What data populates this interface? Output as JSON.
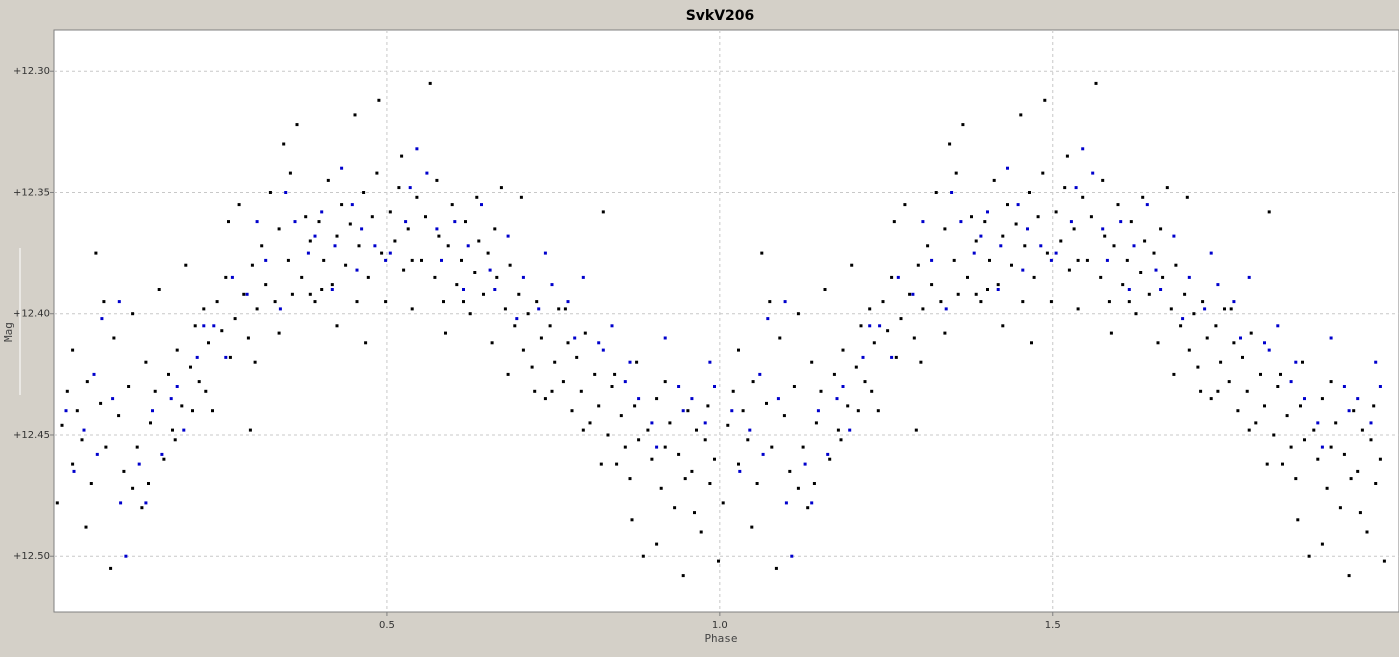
{
  "chart_data": {
    "type": "scatter",
    "title": "SvkV206",
    "xlabel": "Phase",
    "ylabel": "Mag",
    "xlim": [
      0.0,
      2.02
    ],
    "ylim": [
      12.523,
      12.283
    ],
    "y_axis_inverted": true,
    "x_ticks": [
      {
        "value": 0.5,
        "label": "0.5"
      },
      {
        "value": 1.0,
        "label": "1.0"
      },
      {
        "value": 1.5,
        "label": "1.5"
      }
    ],
    "y_ticks": [
      {
        "value": 12.3,
        "label": "+12.30"
      },
      {
        "value": 12.35,
        "label": "+12.35"
      },
      {
        "value": 12.4,
        "label": "+12.40"
      },
      {
        "value": 12.45,
        "label": "+12.45"
      },
      {
        "value": 12.5,
        "label": "+12.50"
      }
    ],
    "grid": true,
    "legend": "none",
    "phase_repeat": 1.0,
    "series": [
      {
        "color": "#000000",
        "points": [
          [
            0.005,
            12.478
          ],
          [
            0.012,
            12.446
          ],
          [
            0.02,
            12.432
          ],
          [
            0.028,
            12.462
          ],
          [
            0.035,
            12.44
          ],
          [
            0.042,
            12.452
          ],
          [
            0.05,
            12.428
          ],
          [
            0.056,
            12.47
          ],
          [
            0.063,
            12.375
          ],
          [
            0.07,
            12.437
          ],
          [
            0.078,
            12.455
          ],
          [
            0.085,
            12.505
          ],
          [
            0.09,
            12.41
          ],
          [
            0.097,
            12.442
          ],
          [
            0.105,
            12.465
          ],
          [
            0.112,
            12.43
          ],
          [
            0.118,
            12.4
          ],
          [
            0.125,
            12.455
          ],
          [
            0.132,
            12.48
          ],
          [
            0.138,
            12.42
          ],
          [
            0.145,
            12.445
          ],
          [
            0.152,
            12.432
          ],
          [
            0.158,
            12.39
          ],
          [
            0.165,
            12.46
          ],
          [
            0.172,
            12.425
          ],
          [
            0.178,
            12.448
          ],
          [
            0.185,
            12.415
          ],
          [
            0.192,
            12.438
          ],
          [
            0.198,
            12.38
          ],
          [
            0.205,
            12.422
          ],
          [
            0.212,
            12.405
          ],
          [
            0.218,
            12.428
          ],
          [
            0.225,
            12.398
          ],
          [
            0.232,
            12.412
          ],
          [
            0.238,
            12.44
          ],
          [
            0.245,
            12.395
          ],
          [
            0.252,
            12.407
          ],
          [
            0.258,
            12.385
          ],
          [
            0.265,
            12.418
          ],
          [
            0.272,
            12.402
          ],
          [
            0.278,
            12.355
          ],
          [
            0.285,
            12.392
          ],
          [
            0.292,
            12.41
          ],
          [
            0.298,
            12.38
          ],
          [
            0.305,
            12.398
          ],
          [
            0.312,
            12.372
          ],
          [
            0.318,
            12.388
          ],
          [
            0.325,
            12.35
          ],
          [
            0.332,
            12.395
          ],
          [
            0.338,
            12.365
          ],
          [
            0.345,
            12.33
          ],
          [
            0.352,
            12.378
          ],
          [
            0.358,
            12.392
          ],
          [
            0.365,
            12.322
          ],
          [
            0.372,
            12.385
          ],
          [
            0.378,
            12.36
          ],
          [
            0.385,
            12.37
          ],
          [
            0.392,
            12.395
          ],
          [
            0.398,
            12.362
          ],
          [
            0.405,
            12.378
          ],
          [
            0.412,
            12.345
          ],
          [
            0.418,
            12.388
          ],
          [
            0.425,
            12.368
          ],
          [
            0.432,
            12.355
          ],
          [
            0.438,
            12.38
          ],
          [
            0.445,
            12.363
          ],
          [
            0.452,
            12.318
          ],
          [
            0.458,
            12.372
          ],
          [
            0.465,
            12.35
          ],
          [
            0.472,
            12.385
          ],
          [
            0.478,
            12.36
          ],
          [
            0.485,
            12.342
          ],
          [
            0.492,
            12.375
          ],
          [
            0.498,
            12.395
          ],
          [
            0.505,
            12.358
          ],
          [
            0.512,
            12.37
          ],
          [
            0.518,
            12.348
          ],
          [
            0.525,
            12.382
          ],
          [
            0.532,
            12.365
          ],
          [
            0.538,
            12.398
          ],
          [
            0.545,
            12.352
          ],
          [
            0.552,
            12.378
          ],
          [
            0.558,
            12.36
          ],
          [
            0.565,
            12.305
          ],
          [
            0.572,
            12.385
          ],
          [
            0.578,
            12.368
          ],
          [
            0.585,
            12.395
          ],
          [
            0.592,
            12.372
          ],
          [
            0.598,
            12.355
          ],
          [
            0.605,
            12.388
          ],
          [
            0.612,
            12.378
          ],
          [
            0.618,
            12.362
          ],
          [
            0.625,
            12.4
          ],
          [
            0.632,
            12.383
          ],
          [
            0.638,
            12.37
          ],
          [
            0.645,
            12.392
          ],
          [
            0.652,
            12.375
          ],
          [
            0.658,
            12.412
          ],
          [
            0.665,
            12.385
          ],
          [
            0.672,
            12.348
          ],
          [
            0.678,
            12.398
          ],
          [
            0.685,
            12.38
          ],
          [
            0.692,
            12.405
          ],
          [
            0.698,
            12.392
          ],
          [
            0.705,
            12.415
          ],
          [
            0.712,
            12.4
          ],
          [
            0.718,
            12.422
          ],
          [
            0.725,
            12.395
          ],
          [
            0.732,
            12.41
          ],
          [
            0.738,
            12.435
          ],
          [
            0.745,
            12.405
          ],
          [
            0.752,
            12.42
          ],
          [
            0.758,
            12.398
          ],
          [
            0.765,
            12.428
          ],
          [
            0.772,
            12.412
          ],
          [
            0.778,
            12.44
          ],
          [
            0.785,
            12.418
          ],
          [
            0.792,
            12.432
          ],
          [
            0.798,
            12.408
          ],
          [
            0.805,
            12.445
          ],
          [
            0.812,
            12.425
          ],
          [
            0.818,
            12.438
          ],
          [
            0.825,
            12.358
          ],
          [
            0.832,
            12.45
          ],
          [
            0.838,
            12.43
          ],
          [
            0.845,
            12.462
          ],
          [
            0.852,
            12.442
          ],
          [
            0.858,
            12.455
          ],
          [
            0.865,
            12.468
          ],
          [
            0.872,
            12.438
          ],
          [
            0.878,
            12.452
          ],
          [
            0.885,
            12.5
          ],
          [
            0.892,
            12.448
          ],
          [
            0.898,
            12.46
          ],
          [
            0.905,
            12.435
          ],
          [
            0.912,
            12.472
          ],
          [
            0.918,
            12.455
          ],
          [
            0.925,
            12.445
          ],
          [
            0.932,
            12.48
          ],
          [
            0.938,
            12.458
          ],
          [
            0.945,
            12.508
          ],
          [
            0.952,
            12.44
          ],
          [
            0.958,
            12.465
          ],
          [
            0.965,
            12.448
          ],
          [
            0.972,
            12.49
          ],
          [
            0.978,
            12.452
          ],
          [
            0.985,
            12.47
          ],
          [
            0.992,
            12.46
          ],
          [
            0.998,
            12.502
          ],
          [
            0.028,
            12.415
          ],
          [
            0.075,
            12.395
          ],
          [
            0.142,
            12.47
          ],
          [
            0.208,
            12.44
          ],
          [
            0.262,
            12.362
          ],
          [
            0.302,
            12.42
          ],
          [
            0.355,
            12.342
          ],
          [
            0.402,
            12.39
          ],
          [
            0.455,
            12.395
          ],
          [
            0.488,
            12.312
          ],
          [
            0.522,
            12.335
          ],
          [
            0.575,
            12.345
          ],
          [
            0.615,
            12.395
          ],
          [
            0.662,
            12.365
          ],
          [
            0.702,
            12.352
          ],
          [
            0.748,
            12.432
          ],
          [
            0.795,
            12.448
          ],
          [
            0.842,
            12.425
          ],
          [
            0.875,
            12.42
          ],
          [
            0.918,
            12.428
          ],
          [
            0.962,
            12.482
          ],
          [
            0.048,
            12.488
          ],
          [
            0.118,
            12.472
          ],
          [
            0.182,
            12.452
          ],
          [
            0.228,
            12.432
          ],
          [
            0.295,
            12.448
          ],
          [
            0.338,
            12.408
          ],
          [
            0.385,
            12.392
          ],
          [
            0.425,
            12.405
          ],
          [
            0.468,
            12.412
          ],
          [
            0.538,
            12.378
          ],
          [
            0.588,
            12.408
          ],
          [
            0.635,
            12.352
          ],
          [
            0.682,
            12.425
          ],
          [
            0.722,
            12.432
          ],
          [
            0.768,
            12.398
          ],
          [
            0.822,
            12.462
          ],
          [
            0.868,
            12.485
          ],
          [
            0.905,
            12.495
          ],
          [
            0.948,
            12.468
          ],
          [
            0.982,
            12.438
          ]
        ]
      },
      {
        "color": "#0000cc",
        "points": [
          [
            0.03,
            12.465
          ],
          [
            0.045,
            12.448
          ],
          [
            0.06,
            12.425
          ],
          [
            0.072,
            12.402
          ],
          [
            0.088,
            12.435
          ],
          [
            0.1,
            12.478
          ],
          [
            0.108,
            12.5
          ],
          [
            0.128,
            12.462
          ],
          [
            0.148,
            12.44
          ],
          [
            0.162,
            12.458
          ],
          [
            0.176,
            12.435
          ],
          [
            0.195,
            12.448
          ],
          [
            0.215,
            12.418
          ],
          [
            0.24,
            12.405
          ],
          [
            0.268,
            12.385
          ],
          [
            0.29,
            12.392
          ],
          [
            0.318,
            12.378
          ],
          [
            0.34,
            12.398
          ],
          [
            0.362,
            12.362
          ],
          [
            0.382,
            12.375
          ],
          [
            0.402,
            12.358
          ],
          [
            0.422,
            12.372
          ],
          [
            0.432,
            12.34
          ],
          [
            0.448,
            12.355
          ],
          [
            0.462,
            12.365
          ],
          [
            0.482,
            12.372
          ],
          [
            0.505,
            12.375
          ],
          [
            0.528,
            12.362
          ],
          [
            0.545,
            12.332
          ],
          [
            0.56,
            12.342
          ],
          [
            0.582,
            12.378
          ],
          [
            0.602,
            12.362
          ],
          [
            0.622,
            12.372
          ],
          [
            0.642,
            12.355
          ],
          [
            0.662,
            12.39
          ],
          [
            0.682,
            12.368
          ],
          [
            0.705,
            12.385
          ],
          [
            0.728,
            12.398
          ],
          [
            0.748,
            12.388
          ],
          [
            0.772,
            12.395
          ],
          [
            0.795,
            12.385
          ],
          [
            0.818,
            12.412
          ],
          [
            0.838,
            12.405
          ],
          [
            0.858,
            12.428
          ],
          [
            0.878,
            12.435
          ],
          [
            0.898,
            12.445
          ],
          [
            0.918,
            12.41
          ],
          [
            0.938,
            12.43
          ],
          [
            0.958,
            12.435
          ],
          [
            0.978,
            12.445
          ],
          [
            0.992,
            12.43
          ],
          [
            0.018,
            12.44
          ],
          [
            0.065,
            12.458
          ],
          [
            0.098,
            12.395
          ],
          [
            0.138,
            12.478
          ],
          [
            0.185,
            12.43
          ],
          [
            0.225,
            12.405
          ],
          [
            0.258,
            12.418
          ],
          [
            0.305,
            12.362
          ],
          [
            0.348,
            12.35
          ],
          [
            0.392,
            12.368
          ],
          [
            0.418,
            12.39
          ],
          [
            0.455,
            12.382
          ],
          [
            0.498,
            12.378
          ],
          [
            0.535,
            12.348
          ],
          [
            0.575,
            12.365
          ],
          [
            0.615,
            12.39
          ],
          [
            0.655,
            12.382
          ],
          [
            0.695,
            12.402
          ],
          [
            0.738,
            12.375
          ],
          [
            0.782,
            12.41
          ],
          [
            0.825,
            12.415
          ],
          [
            0.865,
            12.42
          ],
          [
            0.905,
            12.455
          ],
          [
            0.945,
            12.44
          ],
          [
            0.985,
            12.42
          ]
        ]
      }
    ]
  }
}
